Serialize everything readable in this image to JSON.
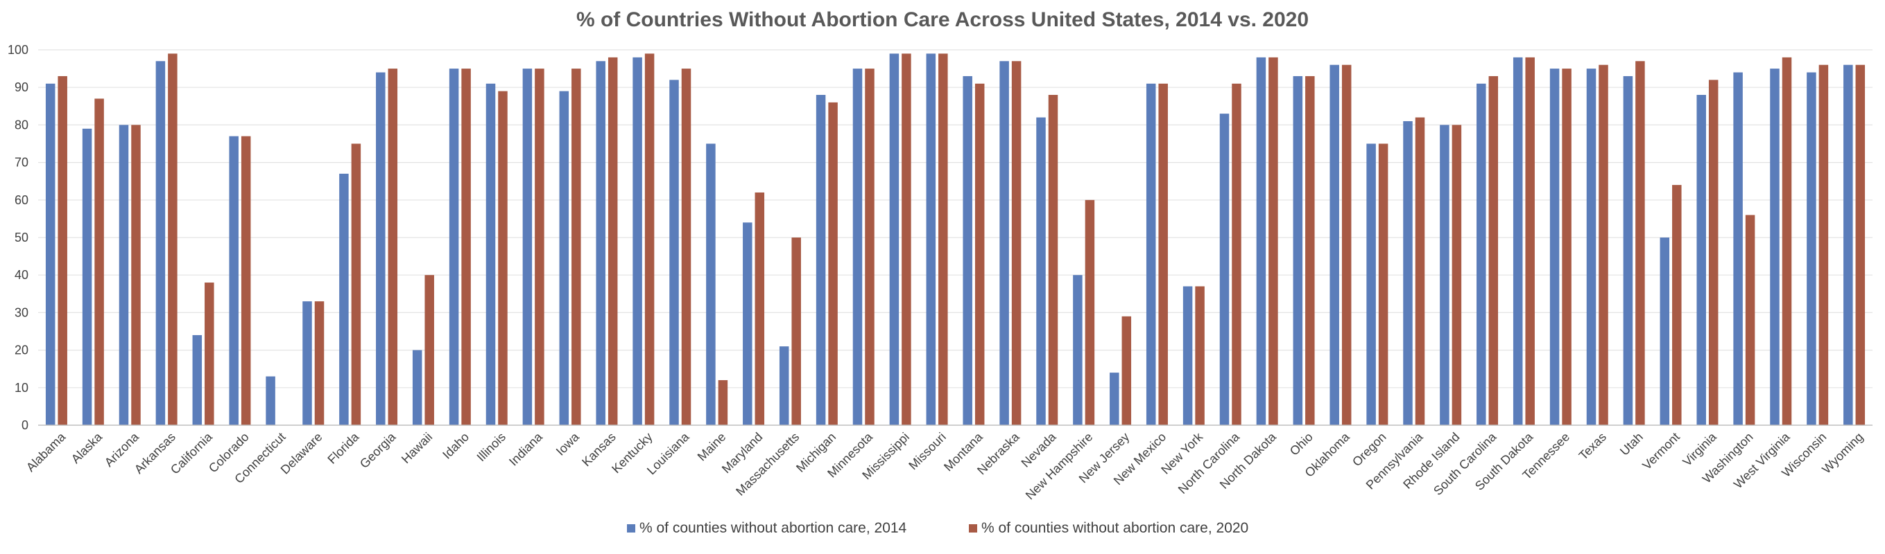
{
  "chart_data": {
    "type": "bar",
    "title": "% of Countries Without Abortion Care Across United States, 2014 vs. 2020",
    "xlabel": "",
    "ylabel": "",
    "ylim": [
      0,
      100
    ],
    "yticks": [
      "0",
      "10",
      "20",
      "30",
      "40",
      "50",
      "60",
      "70",
      "80",
      "90",
      "100"
    ],
    "grid": true,
    "legend_position": "bottom",
    "categories": [
      "Alabama",
      "Alaska",
      "Arizona",
      "Arkansas",
      "California",
      "Colorado",
      "Connecticut",
      "Delaware",
      "Florida",
      "Georgia",
      "Hawaii",
      "Idaho",
      "Illinois",
      "Indiana",
      "Iowa",
      "Kansas",
      "Kentucky",
      "Louisiana",
      "Maine",
      "Maryland",
      "Massachusetts",
      "Michigan",
      "Minnesota",
      "Mississippi",
      "Missouri",
      "Montana",
      "Nebraska",
      "Nevada",
      "New Hampshire",
      "New Jersey",
      "New Mexico",
      "New York",
      "North Carolina",
      "North Dakota",
      "Ohio",
      "Oklahoma",
      "Oregon",
      "Pennsylvania",
      "Rhode Island",
      "South Carolina",
      "South Dakota",
      "Tennessee",
      "Texas",
      "Utah",
      "Vermont",
      "Virginia",
      "Washington",
      "West Virginia",
      "Wisconsin",
      "Wyoming"
    ],
    "series": [
      {
        "name": "% of counties without abortion care, 2014",
        "color": "#5B7DBA",
        "values": [
          91,
          79,
          80,
          97,
          24,
          77,
          13,
          33,
          67,
          94,
          20,
          95,
          91,
          95,
          89,
          97,
          98,
          92,
          75,
          54,
          21,
          88,
          95,
          99,
          99,
          93,
          97,
          82,
          40,
          14,
          91,
          37,
          83,
          98,
          93,
          96,
          75,
          81,
          80,
          91,
          98,
          95,
          95,
          93,
          50,
          88,
          94,
          95,
          94,
          96
        ]
      },
      {
        "name": "% of counties without abortion care, 2020",
        "color": "#A85A45",
        "values": [
          93,
          87,
          80,
          99,
          38,
          77,
          0,
          33,
          75,
          95,
          40,
          95,
          89,
          95,
          95,
          98,
          99,
          95,
          12,
          62,
          50,
          86,
          95,
          99,
          99,
          91,
          97,
          88,
          60,
          29,
          91,
          37,
          91,
          98,
          93,
          96,
          75,
          82,
          80,
          93,
          98,
          95,
          96,
          97,
          64,
          92,
          56,
          98,
          96,
          96
        ]
      }
    ]
  }
}
